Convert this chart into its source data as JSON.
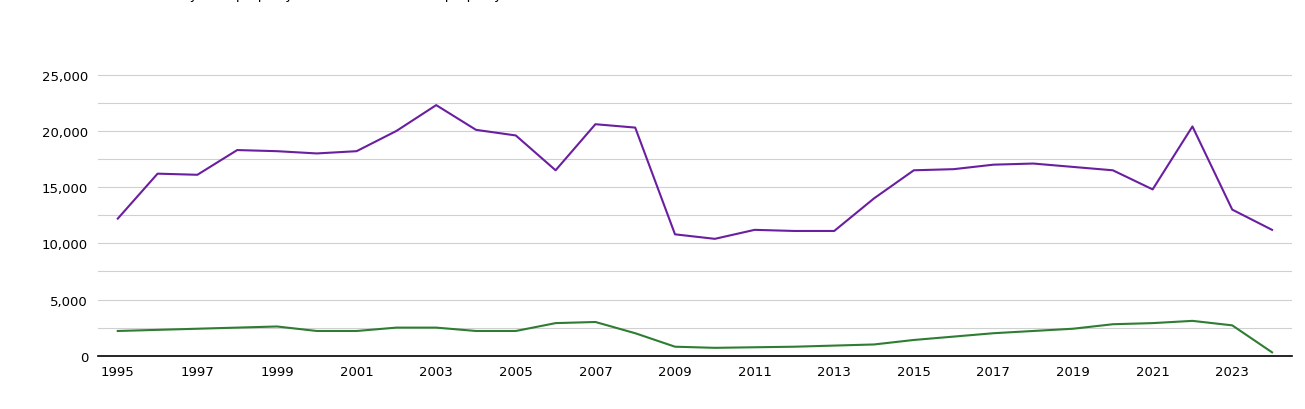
{
  "years": [
    1995,
    1996,
    1997,
    1998,
    1999,
    2000,
    2001,
    2002,
    2003,
    2004,
    2005,
    2006,
    2007,
    2008,
    2009,
    2010,
    2011,
    2012,
    2013,
    2014,
    2015,
    2016,
    2017,
    2018,
    2019,
    2020,
    2021,
    2022,
    2023,
    2024
  ],
  "new_build": [
    2200,
    2300,
    2400,
    2500,
    2600,
    2200,
    2200,
    2500,
    2500,
    2200,
    2200,
    2900,
    3000,
    2000,
    800,
    700,
    750,
    800,
    900,
    1000,
    1400,
    1700,
    2000,
    2200,
    2400,
    2800,
    2900,
    3100,
    2700,
    300
  ],
  "established": [
    12200,
    16200,
    16100,
    18300,
    18200,
    18000,
    18200,
    20000,
    22300,
    20100,
    19600,
    16500,
    20600,
    20300,
    10800,
    10400,
    11200,
    11100,
    11100,
    14000,
    16500,
    16600,
    17000,
    17100,
    16800,
    16500,
    14800,
    20400,
    13000,
    11200
  ],
  "new_build_color": "#2e7d32",
  "established_color": "#6a1fa0",
  "ylim": [
    0,
    27000
  ],
  "yticks": [
    0,
    5000,
    10000,
    15000,
    20000,
    25000
  ],
  "minor_yticks": [
    2500,
    7500,
    12500,
    17500,
    22500
  ],
  "xtick_years": [
    1995,
    1997,
    1999,
    2001,
    2003,
    2005,
    2007,
    2009,
    2011,
    2013,
    2015,
    2017,
    2019,
    2021,
    2023
  ],
  "background_color": "#ffffff",
  "grid_color": "#d0d0d0"
}
